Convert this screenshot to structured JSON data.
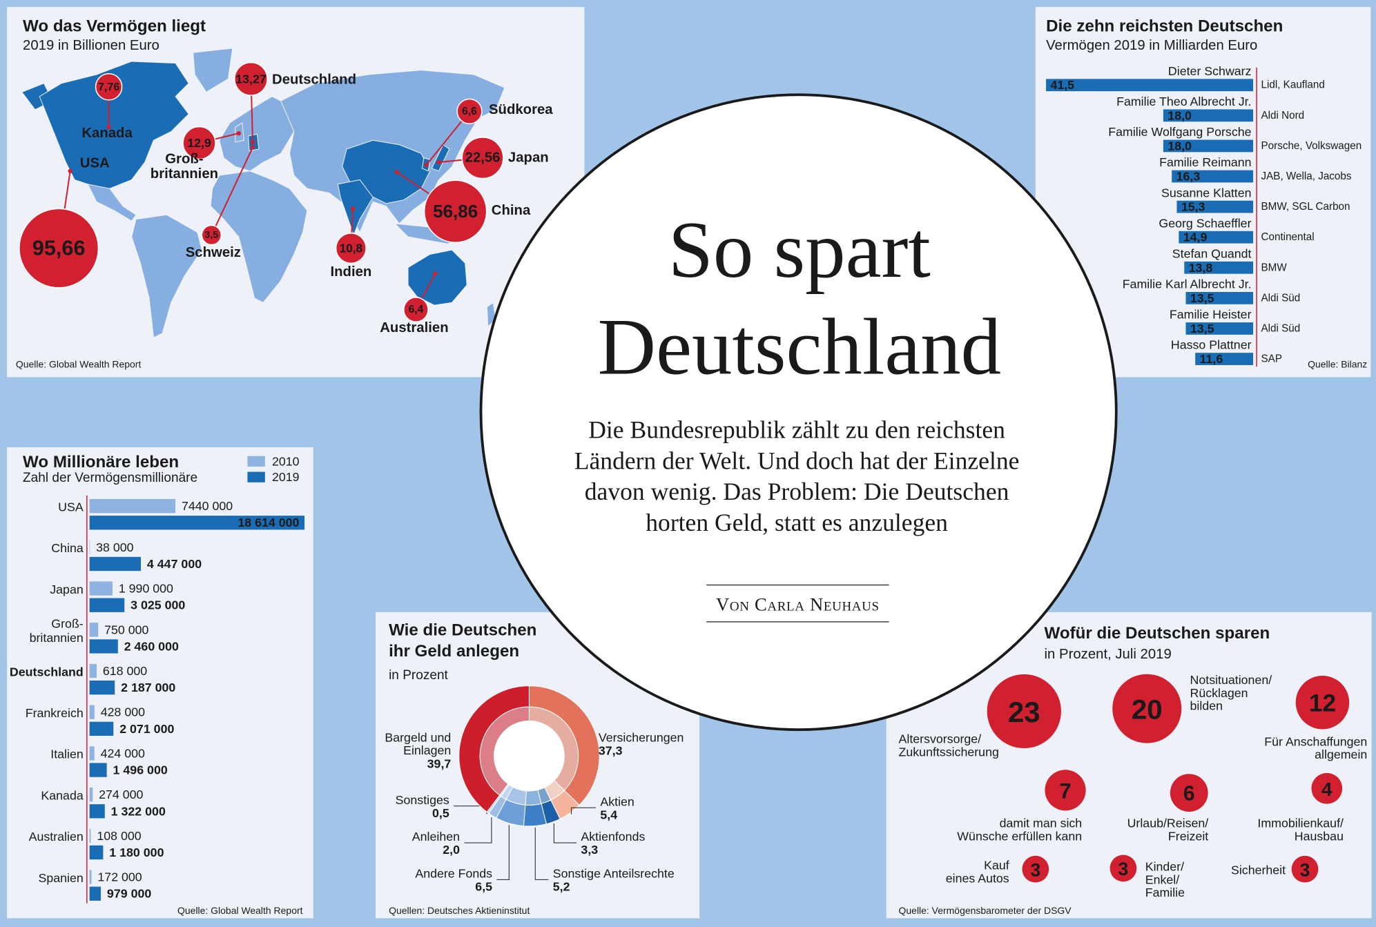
{
  "header": {
    "title": "So spart\nDeutschland",
    "intro": "Die Bundesrepublik zählt zu den reichsten\nLändern der Welt. Und doch hat der Einzelne\ndavon wenig. Das Problem: Die Deutschen\nhorten Geld, statt es anzulegen",
    "author": "Von Carla Neuhaus"
  },
  "chart_data": [
    {
      "type": "bubble-map",
      "title": "Wo das Vermögen liegt",
      "subtitle": "2019 in Billionen Euro",
      "source": "Quelle: Global Wealth Report",
      "categories": [
        "USA",
        "China",
        "Japan",
        "Deutschland",
        "Groß-\nbritannien",
        "Indien",
        "Kanada",
        "Südkorea",
        "Australien",
        "Schweiz"
      ],
      "values": [
        95.66,
        56.86,
        22.56,
        13.27,
        12.9,
        10.8,
        7.76,
        6.6,
        6.4,
        3.5
      ],
      "value_labels": [
        "95,66",
        "56,86",
        "22,56",
        "13,27",
        "12,9",
        "10,8",
        "7,76",
        "6,6",
        "6,4",
        "3,5"
      ],
      "color": "#d1202f"
    },
    {
      "type": "hbar",
      "title": "Die zehn reichsten Deutschen",
      "subtitle": "Vermögen 2019 in Milliarden Euro",
      "source": "Quelle: Bilanz",
      "categories": [
        "Dieter Schwarz",
        "Familie Theo Albrecht Jr.",
        "Familie Wolfgang Porsche",
        "Familie Reimann",
        "Susanne Klatten",
        "Georg Schaeffler",
        "Stefan Quandt",
        "Familie Karl Albrecht Jr.",
        "Familie Heister",
        "Hasso Plattner"
      ],
      "annotations": [
        "Lidl, Kaufland",
        "Aldi Nord",
        "Porsche, Volkswagen",
        "JAB, Wella, Jacobs",
        "BMW, SGL Carbon",
        "Continental",
        "BMW",
        "Aldi Süd",
        "Aldi Süd",
        "SAP"
      ],
      "values": [
        41.5,
        18.0,
        18.0,
        16.3,
        15.3,
        14.9,
        13.8,
        13.5,
        13.5,
        11.6
      ],
      "value_labels": [
        "41,5",
        "18,0",
        "18,0",
        "16,3",
        "15,3",
        "14,9",
        "13,8",
        "13,5",
        "13,5",
        "11,6"
      ],
      "color": "#1a6db5"
    },
    {
      "type": "grouped-hbar",
      "title": "Wo Millionäre leben",
      "subtitle": "Zahl der Vermögensmillionäre",
      "source": "Quelle: Global Wealth Report",
      "categories": [
        "USA",
        "China",
        "Japan",
        "Groß-\nbritannien",
        "Deutschland",
        "Frankreich",
        "Italien",
        "Kanada",
        "Australien",
        "Spanien"
      ],
      "highlight_index": 4,
      "series": [
        {
          "name": "2010",
          "color": "#8fb3e0",
          "values": [
            7440000,
            38000,
            1990000,
            750000,
            618000,
            428000,
            424000,
            274000,
            108000,
            172000
          ],
          "value_labels": [
            "7440 000",
            "38 000",
            "1 990 000",
            "750 000",
            "618 000",
            "428 000",
            "424 000",
            "274 000",
            "108 000",
            "172 000"
          ]
        },
        {
          "name": "2019",
          "color": "#1a6db5",
          "values": [
            18614000,
            4447000,
            3025000,
            2460000,
            2187000,
            2071000,
            1496000,
            1322000,
            1180000,
            979000
          ],
          "value_labels": [
            "18 614 000",
            "4 447 000",
            "3 025 000",
            "2 460 000",
            "2 187 000",
            "2 071 000",
            "1 496 000",
            "1 322 000",
            "1 180 000",
            "979 000"
          ]
        }
      ]
    },
    {
      "type": "donut",
      "title": "Wie die Deutschen\nihr Geld anlegen",
      "subtitle": "in Prozent",
      "source": "Quellen: Deutsches Aktieninstitut",
      "categories": [
        "Versicherungen",
        "Aktien",
        "Aktienfonds",
        "Sonstige Anteilsrechte",
        "Andere Fonds",
        "Anleihen",
        "Sonstiges",
        "Bargeld und\nEinlagen"
      ],
      "values": [
        37.3,
        5.4,
        3.3,
        5.2,
        6.5,
        2.0,
        0.5,
        39.7
      ],
      "value_labels": [
        "37,3",
        "5,4",
        "3,3",
        "5,2",
        "6,5",
        "2,0",
        "0,5",
        "39,7"
      ],
      "colors": [
        "#e2735a",
        "#f4b49c",
        "#1a5fa8",
        "#3d7fc9",
        "#6d9fd9",
        "#9dbde6",
        "#c9daf0",
        "#cc1f2b"
      ]
    },
    {
      "type": "bubble",
      "title": "Wofür die Deutschen sparen",
      "subtitle": "in Prozent, Juli 2019",
      "source": "Quelle: Vermögensbarometer der DSGV",
      "categories": [
        "Altersvorsorge/\nZukunftssicherung",
        "Notsituationen/\nRücklagen\nbilden",
        "Für Anschaffungen\nallgemein",
        "damit man sich\nWünsche erfüllen kann",
        "Urlaub/Reisen/\nFreizeit",
        "Immobilienkauf/\nHausbau",
        "Kauf\neines Autos",
        "Kinder/\nEnkel/\nFamilie",
        "Sicherheit"
      ],
      "values": [
        23,
        20,
        12,
        7,
        6,
        4,
        3,
        3,
        3
      ],
      "color": "#d1202f"
    }
  ]
}
